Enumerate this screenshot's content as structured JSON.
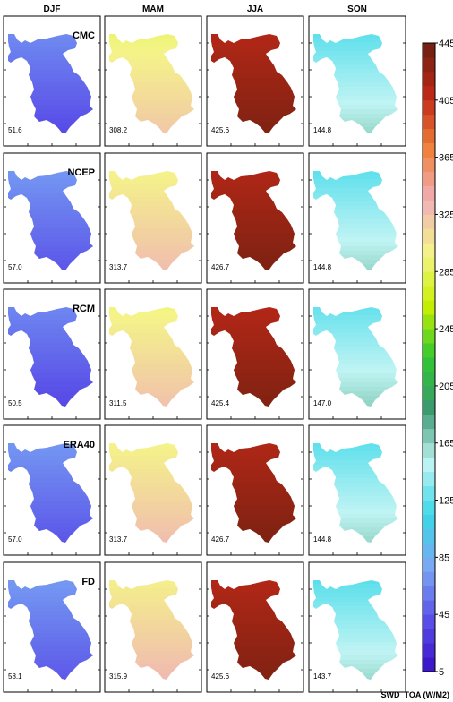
{
  "chart_data": {
    "type": "heatmap",
    "columns": [
      "DJF",
      "MAM",
      "JJA",
      "SON"
    ],
    "rows": [
      {
        "label": "CMC",
        "values": [
          51.6,
          308.2,
          425.6,
          144.8
        ]
      },
      {
        "label": "NCEP",
        "values": [
          57.0,
          313.7,
          426.7,
          144.8
        ]
      },
      {
        "label": "RCM",
        "values": [
          50.5,
          311.5,
          425.4,
          147.0
        ]
      },
      {
        "label": "ERA40",
        "values": [
          57.0,
          313.7,
          426.7,
          144.8
        ]
      },
      {
        "label": "FD",
        "values": [
          58.1,
          315.9,
          425.6,
          143.7
        ]
      }
    ],
    "value_labels": [
      [
        "51.6",
        "308.2",
        "425.6",
        "144.8"
      ],
      [
        "57.0",
        "313.7",
        "426.7",
        "144.8"
      ],
      [
        "50.5",
        "311.5",
        "425.4",
        "147.0"
      ],
      [
        "57.0",
        "313.7",
        "426.7",
        "144.8"
      ],
      [
        "58.1",
        "315.9",
        "425.6",
        "143.7"
      ]
    ],
    "colorbar": {
      "label": "SWD_TOA (W/M2)",
      "range": [
        5,
        445
      ],
      "ticks": [
        "5",
        "45",
        "85",
        "125",
        "165",
        "205",
        "245",
        "285",
        "325",
        "365",
        "405",
        "445"
      ],
      "palette": [
        "#3a10c8",
        "#5a50e8",
        "#7aa8f4",
        "#3ad8e8",
        "#c0f4f4",
        "#3a9a70",
        "#30c830",
        "#c8f000",
        "#f4f488",
        "#f0b0b8",
        "#f08038",
        "#c02818",
        "#6a2010"
      ]
    }
  }
}
